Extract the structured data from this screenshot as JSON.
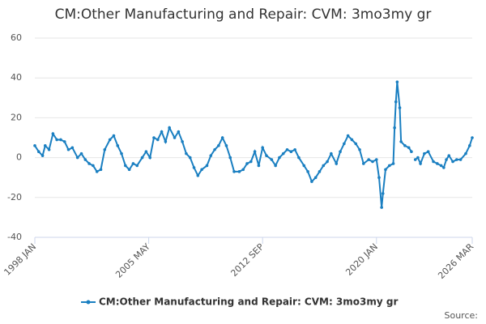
{
  "chart_data": {
    "type": "line",
    "title": "CM:Other Manufacturing and Repair: CVM: 3mo3my gr",
    "source": "Source:",
    "x": [
      "1998 JAN",
      "1998 APR",
      "1998 JUL",
      "1998 SEP",
      "1998 DEC",
      "1999 MAR",
      "1999 JUN",
      "1999 SEP",
      "1999 DEC",
      "2000 MAR",
      "2000 JUN",
      "2000 OCT",
      "2001 JAN",
      "2001 APR",
      "2001 JUL",
      "2001 OCT",
      "2002 JAN",
      "2002 APR",
      "2002 JUL",
      "2002 NOV",
      "2003 FEB",
      "2003 MAY",
      "2003 AUG",
      "2003 NOV",
      "2004 FEB",
      "2004 MAY",
      "2004 AUG",
      "2004 DEC",
      "2005 MAR",
      "2005 JUN",
      "2005 SEP",
      "2005 DEC",
      "2006 MAR",
      "2006 JUN",
      "2006 SEP",
      "2007 JAN",
      "2007 APR",
      "2007 JUL",
      "2007 OCT",
      "2008 JAN",
      "2008 APR",
      "2008 JUL",
      "2008 OCT",
      "2009 FEB",
      "2009 MAY",
      "2009 AUG",
      "2009 NOV",
      "2010 FEB",
      "2010 MAY",
      "2010 AUG",
      "2010 NOV",
      "2011 MAR",
      "2011 JUN",
      "2011 SEP",
      "2011 DEC",
      "2012 MAR",
      "2012 JUN",
      "2012 SEP",
      "2012 DEC",
      "2013 APR",
      "2013 JUL",
      "2013 OCT",
      "2014 JAN",
      "2014 APR",
      "2014 JUL",
      "2014 OCT",
      "2015 JAN",
      "2015 MAY",
      "2015 AUG",
      "2015 NOV",
      "2016 FEB",
      "2016 MAY",
      "2016 AUG",
      "2016 NOV",
      "2017 FEB",
      "2017 JUN",
      "2017 SEP",
      "2017 DEC",
      "2018 MAR",
      "2018 JUN",
      "2018 SEP",
      "2018 DEC",
      "2019 MAR",
      "2019 JUL",
      "2019 OCT",
      "2020 JAN",
      "2020 MAR",
      "2020 MAY",
      "2020 JUN",
      "2020 AUG",
      "2020 NOV",
      "2021 FEB",
      "2021 MAR",
      "2021 APR",
      "2021 MAY",
      "2021 JUL",
      "2021 AUG",
      "2021 NOV",
      "2022 FEB",
      "2022 APR",
      "2022 MAY",
      "2022 JUL",
      "2022 SEP",
      "2022 NOV",
      "2023 FEB",
      "2023 MAY",
      "2023 SEP",
      "2023 DEC",
      "2024 MAR",
      "2024 MAY",
      "2024 JUL",
      "2024 SEP",
      "2024 DEC",
      "2025 MAR",
      "2025 JUN",
      "2025 OCT",
      "2026 JAN",
      "2026 MAR"
    ],
    "series": [
      {
        "name": "CM:Other Manufacturing and Repair: CVM: 3mo3my gr",
        "color": "#1a7fc1",
        "values": [
          6,
          3,
          1,
          6,
          4,
          12,
          9,
          9,
          8,
          4,
          5,
          0,
          2,
          -1,
          -3,
          -4,
          -7,
          -6,
          4,
          9,
          11,
          6,
          2,
          -4,
          -6,
          -3,
          -4,
          0,
          3,
          0,
          10,
          9,
          13,
          8,
          15,
          10,
          13,
          8,
          2,
          0,
          -5,
          -9,
          -6,
          -4,
          1,
          4,
          6,
          10,
          6,
          0,
          -7,
          -7,
          -6,
          -3,
          -2,
          3,
          -4,
          5,
          1,
          -1,
          -4,
          0,
          2,
          4,
          3,
          4,
          0,
          -4,
          -7,
          -12,
          -10,
          -7,
          -4,
          -2,
          2,
          -3,
          3,
          7,
          11,
          9,
          7,
          4,
          -3,
          -1,
          -2,
          -1,
          -10,
          -25,
          -18,
          -6,
          -4,
          -3,
          15,
          28,
          38,
          25,
          8,
          6,
          5,
          3,
          null,
          -1,
          0,
          -3,
          2,
          3,
          -2,
          -3,
          -4,
          -5,
          -1,
          1,
          -2,
          -1,
          -1,
          2,
          6,
          10
        ]
      }
    ],
    "xlim": [
      "1998 JAN",
      "2026 MAR"
    ],
    "xticks": [
      "1998 JAN",
      "2005 MAY",
      "2012 SEP",
      "2020 JAN",
      "2026 MAR"
    ],
    "ylim": [
      -40,
      60
    ],
    "yticks": [
      -40,
      -20,
      0,
      20,
      40,
      60
    ],
    "grid": true,
    "legend": "bottom"
  }
}
